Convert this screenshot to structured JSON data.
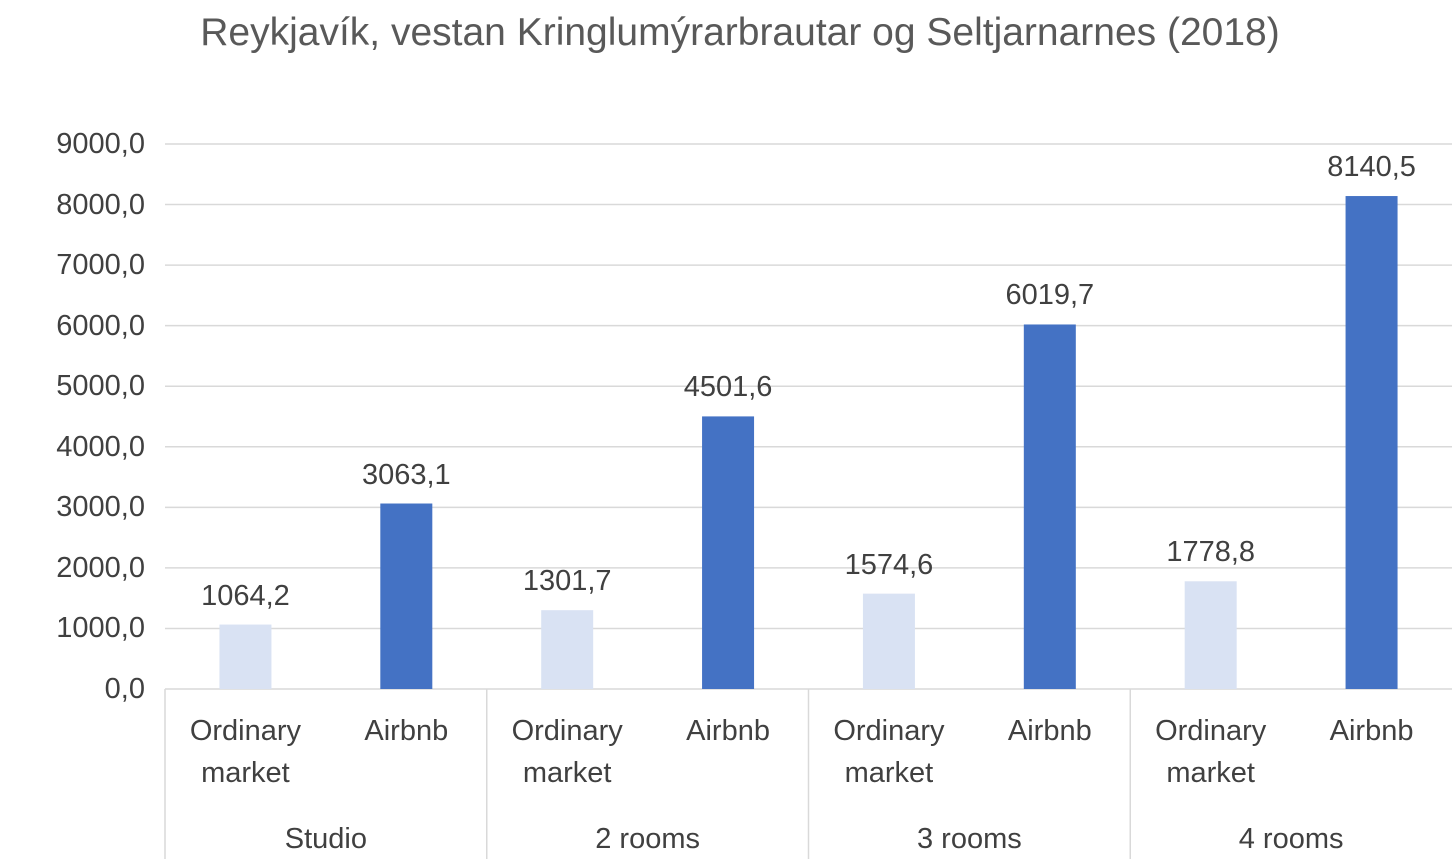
{
  "chart_data": {
    "type": "bar",
    "title": "Reykjavík, vestan Kringlumýrarbrautar og Seltjarnarnes (2018)",
    "categories": [
      "Studio",
      "2 rooms",
      "3 rooms",
      "4 rooms"
    ],
    "series": [
      {
        "name": "Ordinary market",
        "color": "#d9e2f3",
        "values": [
          1064.2,
          1301.7,
          1574.6,
          1778.8
        ],
        "value_labels": [
          "1064,2",
          "1301,7",
          "1574,6",
          "1778,8"
        ]
      },
      {
        "name": "Airbnb",
        "color": "#4472c4",
        "values": [
          3063.1,
          4501.6,
          6019.7,
          8140.5
        ],
        "value_labels": [
          "3063,1",
          "4501,6",
          "6019,7",
          "8140,5"
        ]
      }
    ],
    "ylim": [
      0,
      9000
    ],
    "yticks": [
      {
        "value": 0,
        "label": "0,0"
      },
      {
        "value": 1000,
        "label": "1000,0"
      },
      {
        "value": 2000,
        "label": "2000,0"
      },
      {
        "value": 3000,
        "label": "3000,0"
      },
      {
        "value": 4000,
        "label": "4000,0"
      },
      {
        "value": 5000,
        "label": "5000,0"
      },
      {
        "value": 6000,
        "label": "6000,0"
      },
      {
        "value": 7000,
        "label": "7000,0"
      },
      {
        "value": 8000,
        "label": "8000,0"
      },
      {
        "value": 9000,
        "label": "9000,0"
      }
    ],
    "grid": true
  }
}
